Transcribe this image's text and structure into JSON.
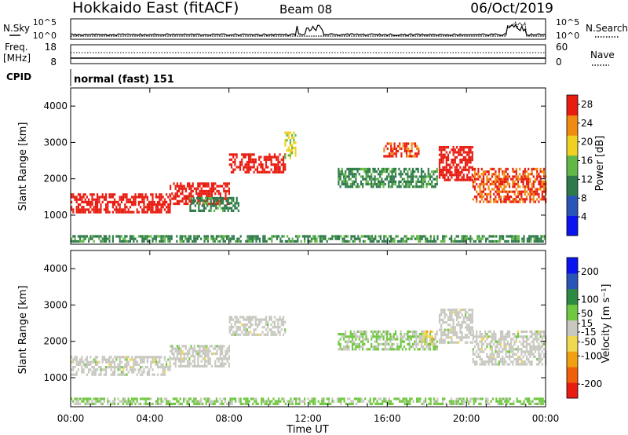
{
  "header": {
    "station": "Hokkaido East (fitACF)",
    "beam": "Beam 08",
    "date": "06/Oct/2019"
  },
  "top_panels": {
    "nsky_label": "N.Sky",
    "nsky_ticks": [
      "10^5",
      "10^0"
    ],
    "nsearch_label": "N.Search",
    "nsearch_ticks": [
      "10^5",
      "10^0"
    ],
    "freq_label": "Freq.",
    "freq_unit": "[MHz]",
    "freq_ticks": [
      "18",
      "8"
    ],
    "nave_label": "Nave",
    "nave_ticks": [
      "60",
      "0"
    ],
    "cpid_label": "CPID",
    "cpid_value": "normal (fast) 151"
  },
  "chart_data": [
    {
      "type": "heatmap",
      "panel": "power",
      "ylabel": "Slant Range [km]",
      "yticks": [
        "4000",
        "3000",
        "2000",
        "1000"
      ],
      "ylim": [
        200,
        4500
      ],
      "xlim_hours": [
        0,
        24
      ],
      "colorbar": {
        "label": "Power [dB]",
        "ticks": [
          "28",
          "24",
          "20",
          "16",
          "12",
          "8",
          "4"
        ],
        "range": [
          0,
          30
        ],
        "colors": [
          "#0a14f0",
          "#2a55b8",
          "#2e7a4a",
          "#62b846",
          "#f0d020",
          "#f08a10",
          "#e81c10"
        ]
      },
      "echo_bands": [
        {
          "t_start": 0.0,
          "t_end": 5.0,
          "r_low": 1100,
          "r_high": 1600,
          "value": 28
        },
        {
          "t_start": 5.0,
          "t_end": 8.0,
          "r_low": 1300,
          "r_high": 1900,
          "value": 28
        },
        {
          "t_start": 8.0,
          "t_end": 10.8,
          "r_low": 2150,
          "r_high": 2700,
          "value": 28
        },
        {
          "t_start": 10.8,
          "t_end": 11.4,
          "r_low": 2600,
          "r_high": 3300,
          "value": 18
        },
        {
          "t_start": 15.8,
          "t_end": 17.6,
          "r_low": 2600,
          "r_high": 3000,
          "value": 26
        },
        {
          "t_start": 18.6,
          "t_end": 20.3,
          "r_low": 2000,
          "r_high": 2900,
          "value": 28
        },
        {
          "t_start": 20.3,
          "t_end": 24.0,
          "r_low": 1400,
          "r_high": 2300,
          "value": 26
        },
        {
          "t_start": 13.5,
          "t_end": 18.5,
          "r_low": 1800,
          "r_high": 2300,
          "value": 12
        },
        {
          "t_start": 6.0,
          "t_end": 8.5,
          "r_low": 1100,
          "r_high": 1500,
          "value": 12
        },
        {
          "t_start": 0.0,
          "t_end": 24.0,
          "r_low": 250,
          "r_high": 450,
          "value": 12
        }
      ]
    },
    {
      "type": "heatmap",
      "panel": "velocity",
      "ylabel": "Slant Range [km]",
      "yticks": [
        "4000",
        "3000",
        "2000",
        "1000"
      ],
      "ylim": [
        200,
        4500
      ],
      "xlim_hours": [
        0,
        24
      ],
      "xticks": [
        "00:00",
        "04:00",
        "08:00",
        "12:00",
        "16:00",
        "20:00",
        "00:00"
      ],
      "xlabel": "Time UT",
      "colorbar": {
        "label": "Velocity [m s⁻¹]",
        "ticks": [
          "200",
          "100",
          "50",
          "15",
          "-15",
          "-50",
          "-100",
          "-200"
        ],
        "range": [
          -250,
          250
        ],
        "colors": [
          "#e81c10",
          "#f0600a",
          "#f0a010",
          "#f0d850",
          "#c8c8c0",
          "#70c840",
          "#2e8a40",
          "#2a55b8",
          "#0a14f0"
        ]
      },
      "echo_bands": [
        {
          "t_start": 0.0,
          "t_end": 5.0,
          "r_low": 1100,
          "r_high": 1600,
          "value": 0
        },
        {
          "t_start": 5.0,
          "t_end": 8.0,
          "r_low": 1300,
          "r_high": 1900,
          "value": 0
        },
        {
          "t_start": 8.0,
          "t_end": 10.8,
          "r_low": 2150,
          "r_high": 2700,
          "value": 0
        },
        {
          "t_start": 18.6,
          "t_end": 20.3,
          "r_low": 2000,
          "r_high": 2900,
          "value": 0
        },
        {
          "t_start": 20.3,
          "t_end": 24.0,
          "r_low": 1400,
          "r_high": 2300,
          "value": 0
        },
        {
          "t_start": 13.5,
          "t_end": 18.5,
          "r_low": 1800,
          "r_high": 2300,
          "value": 30
        },
        {
          "t_start": 17.8,
          "t_end": 18.3,
          "r_low": 1900,
          "r_high": 2300,
          "value": -60
        },
        {
          "t_start": 0.0,
          "t_end": 24.0,
          "r_low": 250,
          "r_high": 450,
          "value": 40
        }
      ]
    }
  ]
}
